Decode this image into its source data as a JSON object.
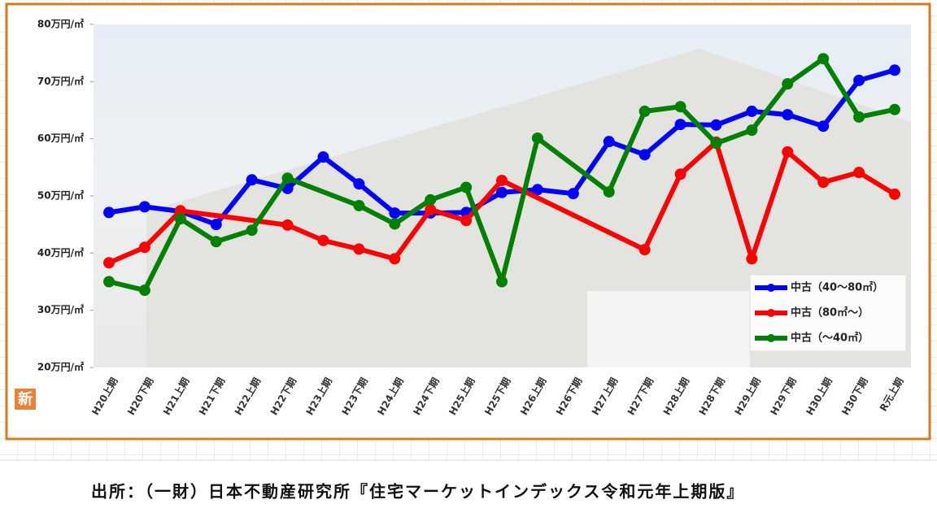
{
  "chart_data": {
    "type": "line",
    "categories": [
      "H20上期",
      "H20下期",
      "H21上期",
      "H21下期",
      "H22上期",
      "H22下期",
      "H23上期",
      "H23下期",
      "H24上期",
      "H24下期",
      "H25上期",
      "H25下期",
      "H26上期",
      "H26下期",
      "H27上期",
      "H27下期",
      "H28上期",
      "H28下期",
      "H29上期",
      "H29下期",
      "H30上期",
      "H30下期",
      "R元上期"
    ],
    "series": [
      {
        "name": "中古（40～80㎡）",
        "color": "#0000ff",
        "values": [
          47.1,
          48.1,
          47.3,
          45.0,
          52.8,
          51.3,
          56.8,
          52.1,
          47.0,
          47.0,
          47.1,
          50.6,
          51.1,
          50.4,
          59.5,
          57.2,
          62.5,
          62.4,
          64.8,
          64.2,
          62.2,
          70.2,
          72.0
        ]
      },
      {
        "name": "中古（80㎡～）",
        "color": "#ff0000",
        "values": [
          38.3,
          41.0,
          47.4,
          null,
          null,
          44.9,
          42.2,
          40.7,
          39.0,
          47.6,
          45.7,
          52.7,
          null,
          null,
          null,
          40.6,
          53.8,
          59.4,
          39.0,
          57.7,
          52.4,
          54.1,
          50.3
        ]
      },
      {
        "name": "中古（～40㎡）",
        "color": "#008000",
        "values": [
          35.0,
          33.5,
          46.0,
          42.0,
          44.0,
          53.1,
          null,
          48.3,
          45.1,
          49.3,
          51.5,
          35.0,
          60.1,
          null,
          50.7,
          64.8,
          65.6,
          59.2,
          61.5,
          69.6,
          74.0,
          63.8,
          65.1
        ]
      }
    ],
    "ylim": [
      20,
      80
    ],
    "yticks": [
      {
        "value": 20,
        "label": "20万円/㎡"
      },
      {
        "value": 30,
        "label": "30万円/㎡"
      },
      {
        "value": 40,
        "label": "40万円/㎡"
      },
      {
        "value": 50,
        "label": "50万円/㎡"
      },
      {
        "value": 60,
        "label": "60万円/㎡"
      },
      {
        "value": 70,
        "label": "70万円/㎡"
      },
      {
        "value": 80,
        "label": "80万円/㎡"
      }
    ],
    "legend": "lower right",
    "source": "出所：（一財）日本不動産研究所『住宅マーケットインデックス令和元年上期版』"
  },
  "badge": "新"
}
